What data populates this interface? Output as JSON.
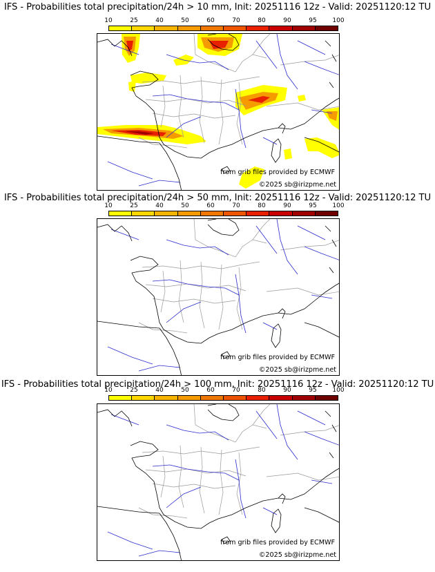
{
  "legend": {
    "ticks": [
      "10",
      "25",
      "40",
      "50",
      "60",
      "70",
      "80",
      "90",
      "95",
      "100"
    ],
    "colors": [
      "#ffff00",
      "#ffd700",
      "#f5b400",
      "#f59b00",
      "#f07800",
      "#ee5500",
      "#e82000",
      "#c80000",
      "#a00000",
      "#700000"
    ]
  },
  "panels": [
    {
      "title": "IFS - Probabilities total precipitation/24h > 10 mm, Init: 20251116 12z - Valid: 20251120:12 TU",
      "source_credit": "from grib files provided by ECMWF",
      "copyright": "©2025 sb@irizpme.net"
    },
    {
      "title": "IFS - Probabilities total precipitation/24h > 50 mm, Init: 20251116 12z - Valid: 20251120:12 TU",
      "source_credit": "from grib files provided by ECMWF",
      "copyright": "©2025 sb@irizpme.net"
    },
    {
      "title": "IFS - Probabilities total precipitation/24h > 100 mm, Init: 20251116 12z - Valid: 20251120:12 TU",
      "source_credit": "from grib files provided by ECMWF",
      "copyright": "©2025 sb@irizpme.net"
    }
  ],
  "map_colors": {
    "coast": "#000000",
    "rivers": "#2a2ad0",
    "borders": "#999999"
  }
}
